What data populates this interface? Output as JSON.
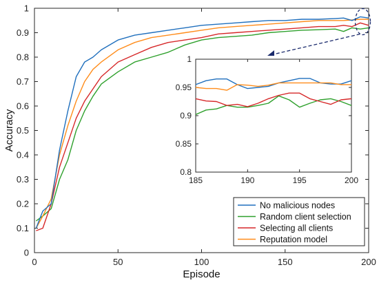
{
  "chart_data": {
    "type": "line",
    "title": "",
    "xlabel": "Episode",
    "ylabel": "Accuracy",
    "xlim": [
      0,
      200
    ],
    "ylim": [
      0,
      1
    ],
    "xticks": [
      0,
      50,
      100,
      150,
      200
    ],
    "yticks": [
      0,
      0.1,
      0.2,
      0.3,
      0.4,
      0.5,
      0.6,
      0.7,
      0.8,
      0.9,
      1
    ],
    "xtick_labels": [
      "0",
      "50",
      "100",
      "150",
      "200"
    ],
    "ytick_labels": [
      "0",
      "0.1",
      "0.2",
      "0.3",
      "0.4",
      "0.5",
      "0.6",
      "0.7",
      "0.8",
      "0.9",
      "1"
    ],
    "grid": false,
    "legend_position": "bottom-right",
    "x": [
      1,
      5,
      10,
      15,
      20,
      25,
      30,
      35,
      40,
      50,
      60,
      70,
      80,
      90,
      100,
      110,
      120,
      130,
      140,
      150,
      160,
      170,
      180,
      185,
      190,
      195,
      200
    ],
    "series": [
      {
        "name": "No malicious nodes",
        "color": "#1f6fbd",
        "values": [
          0.1,
          0.17,
          0.2,
          0.42,
          0.58,
          0.72,
          0.78,
          0.8,
          0.83,
          0.87,
          0.89,
          0.9,
          0.91,
          0.92,
          0.93,
          0.935,
          0.94,
          0.945,
          0.95,
          0.95,
          0.955,
          0.955,
          0.958,
          0.96,
          0.95,
          0.965,
          0.96
        ]
      },
      {
        "name": "Random client selection",
        "color": "#2ea02c",
        "values": [
          0.13,
          0.15,
          0.18,
          0.3,
          0.38,
          0.5,
          0.58,
          0.64,
          0.69,
          0.74,
          0.78,
          0.8,
          0.82,
          0.85,
          0.87,
          0.88,
          0.885,
          0.89,
          0.9,
          0.905,
          0.91,
          0.912,
          0.915,
          0.905,
          0.92,
          0.915,
          0.92
        ]
      },
      {
        "name": "Selecting all clients",
        "color": "#d62728",
        "values": [
          0.09,
          0.1,
          0.2,
          0.35,
          0.45,
          0.55,
          0.62,
          0.67,
          0.72,
          0.78,
          0.81,
          0.84,
          0.86,
          0.87,
          0.88,
          0.895,
          0.9,
          0.905,
          0.91,
          0.915,
          0.92,
          0.925,
          0.925,
          0.93,
          0.925,
          0.94,
          0.93
        ]
      },
      {
        "name": "Reputation model",
        "color": "#ff8c1a",
        "values": [
          0.1,
          0.15,
          0.22,
          0.4,
          0.52,
          0.62,
          0.7,
          0.75,
          0.78,
          0.83,
          0.86,
          0.88,
          0.89,
          0.9,
          0.91,
          0.92,
          0.925,
          0.93,
          0.935,
          0.94,
          0.945,
          0.95,
          0.95,
          0.95,
          0.952,
          0.955,
          0.955
        ]
      }
    ],
    "inset": {
      "xlim": [
        185,
        200
      ],
      "ylim": [
        0.8,
        1
      ],
      "xticks": [
        185,
        190,
        195,
        200
      ],
      "yticks": [
        0.8,
        0.85,
        0.9,
        0.95,
        1
      ],
      "xtick_labels": [
        "185",
        "190",
        "195",
        "200"
      ],
      "ytick_labels": [
        "0.8",
        "0.85",
        "0.9",
        "0.95",
        "1"
      ],
      "x": [
        185,
        186,
        187,
        188,
        189,
        190,
        191,
        192,
        193,
        194,
        195,
        196,
        197,
        198,
        199,
        200
      ],
      "series": [
        {
          "name": "No malicious nodes",
          "color": "#1f6fbd",
          "values": [
            0.955,
            0.962,
            0.965,
            0.965,
            0.955,
            0.948,
            0.95,
            0.952,
            0.958,
            0.962,
            0.966,
            0.966,
            0.958,
            0.956,
            0.956,
            0.962
          ]
        },
        {
          "name": "Random client selection",
          "color": "#2ea02c",
          "values": [
            0.902,
            0.91,
            0.912,
            0.918,
            0.915,
            0.915,
            0.918,
            0.922,
            0.935,
            0.928,
            0.915,
            0.922,
            0.928,
            0.93,
            0.925,
            0.918
          ]
        },
        {
          "name": "Selecting all clients",
          "color": "#d62728",
          "values": [
            0.93,
            0.926,
            0.925,
            0.918,
            0.92,
            0.916,
            0.922,
            0.93,
            0.936,
            0.94,
            0.94,
            0.93,
            0.925,
            0.92,
            0.928,
            0.93
          ]
        },
        {
          "name": "Reputation model",
          "color": "#ff8c1a",
          "values": [
            0.95,
            0.948,
            0.948,
            0.945,
            0.955,
            0.954,
            0.952,
            0.954,
            0.958,
            0.958,
            0.958,
            0.958,
            0.958,
            0.958,
            0.955,
            0.955
          ]
        }
      ]
    }
  }
}
